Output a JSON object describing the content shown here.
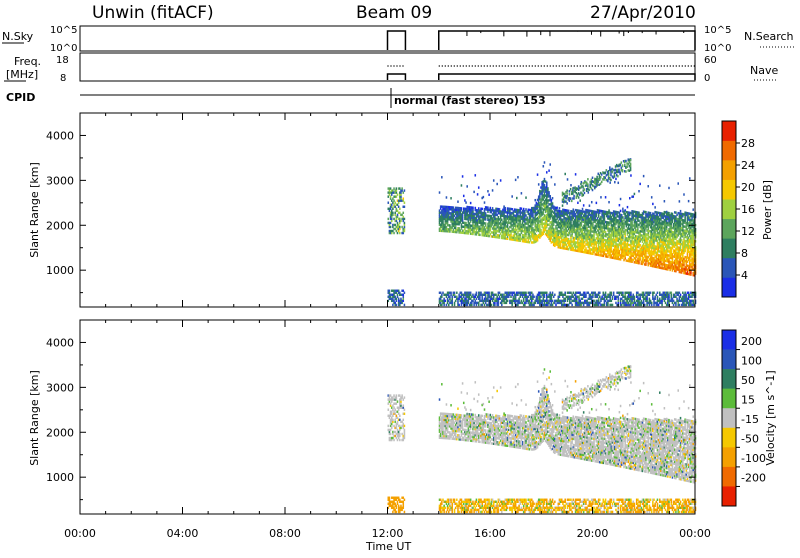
{
  "header": {
    "station": "Unwin (fitACF)",
    "beam": "Beam 09",
    "date": "27/Apr/2010"
  },
  "top_panels": {
    "nsky_label": "N.Sky",
    "nsky_ticks": [
      "10^5",
      "10^0"
    ],
    "nsearch_label": "N.Search",
    "nsearch_ticks": [
      "10^5",
      "10^0"
    ],
    "freq_label_line1": "Freq.",
    "freq_label_line2": "[MHz]",
    "freq_ticks": [
      "18",
      "8"
    ],
    "nave_label": "Nave",
    "nave_ticks": [
      "60",
      "0"
    ],
    "cpid_label": "CPID",
    "cpid_text": "normal (fast stereo) 153"
  },
  "colors": {
    "power_scale": [
      "#1a2ee6",
      "#2a56b8",
      "#2e7e60",
      "#5ca55c",
      "#9fd040",
      "#f5c800",
      "#f4a000",
      "#f06a00",
      "#e82000"
    ],
    "velocity_scale": [
      "#1a2ee6",
      "#2a56b8",
      "#2e7e60",
      "#5cbc3a",
      "#c0c0c0",
      "#f5c800",
      "#f4a000",
      "#f06a00",
      "#e82000"
    ],
    "ground_scatter": "#c0c0c0"
  },
  "chart_data": [
    {
      "type": "heatmap",
      "panel": "power",
      "ylabel": "Slant Range [km]",
      "ylim": [
        180,
        4500
      ],
      "yticks": [
        "1000",
        "2000",
        "3000",
        "4000"
      ],
      "colorbar_label": "Power [dB]",
      "colorbar_ticks": [
        "4",
        "8",
        "12",
        "16",
        "20",
        "24",
        "28"
      ],
      "colorbar_range": [
        0,
        32
      ],
      "x_range_hours": [
        0,
        24
      ],
      "data_gap_hours": [
        [
          12.7,
          14.0
        ]
      ],
      "echo_bands": [
        {
          "t_start": 14.0,
          "t_end": 24.0,
          "r_top_start": 2400,
          "r_top_end": 2200,
          "r_bottom_start": 1900,
          "r_bottom_end": 800,
          "power_dB": [
            4,
            28
          ]
        },
        {
          "t_start": 12.0,
          "t_end": 12.6,
          "r_top_start": 2700,
          "r_top_end": 2800,
          "r_bottom_start": 1800,
          "r_bottom_end": 1800,
          "power_dB": [
            4,
            20
          ]
        },
        {
          "t_start": 14.0,
          "t_end": 24.0,
          "r_top_start": 450,
          "r_top_end": 500,
          "r_bottom_start": 200,
          "r_bottom_end": 200,
          "power_dB": [
            4,
            12
          ]
        }
      ]
    },
    {
      "type": "heatmap",
      "panel": "velocity",
      "ylabel": "Slant Range [km]",
      "ylim": [
        180,
        4500
      ],
      "yticks": [
        "1000",
        "2000",
        "3000",
        "4000"
      ],
      "colorbar_label": "Velocity [m s^-1]",
      "colorbar_ticks": [
        "200",
        "100",
        "50",
        "15",
        "-15",
        "-50",
        "-100",
        "-200"
      ],
      "x_range_hours": [
        0,
        24
      ],
      "data_gap_hours": [
        [
          12.7,
          14.0
        ]
      ],
      "xlabel": "Time UT",
      "xticks": [
        "00:00",
        "04:00",
        "08:00",
        "12:00",
        "16:00",
        "20:00",
        "00:00"
      ]
    }
  ]
}
